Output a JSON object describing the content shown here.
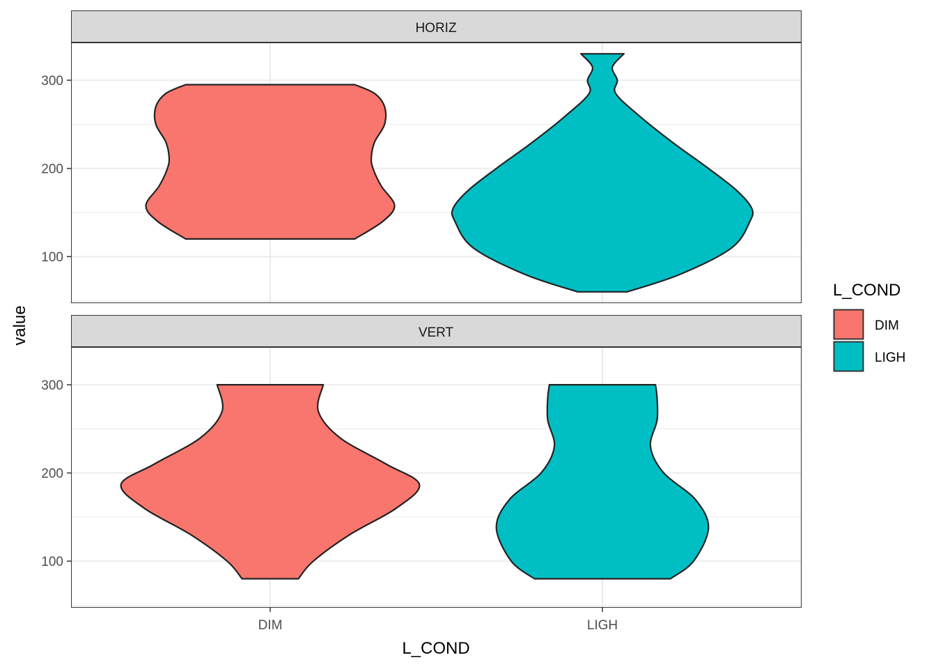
{
  "chart_data": {
    "type": "violin",
    "xlabel": "L_COND",
    "ylabel": "value",
    "categories": [
      "DIM",
      "LIGH"
    ],
    "ylim": [
      48,
      342
    ],
    "y_ticks": [
      100,
      200,
      300
    ],
    "legend": {
      "title": "L_COND",
      "position": "right",
      "entries": [
        {
          "label": "DIM",
          "color": "#F8766D"
        },
        {
          "label": "LIGH",
          "color": "#00BFC4"
        }
      ]
    },
    "grid": true,
    "panels": [
      {
        "label": "HORIZ",
        "violins": [
          {
            "category": "DIM",
            "color": "#F8766D",
            "min": 120,
            "max": 295,
            "profile": [
              [
                120,
                0.51
              ],
              [
                140,
                0.68
              ],
              [
                158,
                0.75
              ],
              [
                180,
                0.67
              ],
              [
                200,
                0.62
              ],
              [
                213,
                0.61
              ],
              [
                230,
                0.63
              ],
              [
                250,
                0.69
              ],
              [
                270,
                0.69
              ],
              [
                285,
                0.63
              ],
              [
                295,
                0.51
              ]
            ]
          },
          {
            "category": "LIGH",
            "color": "#00BFC4",
            "min": 60,
            "max": 330,
            "profile": [
              [
                60,
                0.15
              ],
              [
                80,
                0.47
              ],
              [
                110,
                0.78
              ],
              [
                140,
                0.89
              ],
              [
                155,
                0.9
              ],
              [
                175,
                0.81
              ],
              [
                200,
                0.64
              ],
              [
                230,
                0.42
              ],
              [
                260,
                0.22
              ],
              [
                285,
                0.08
              ],
              [
                300,
                0.09
              ],
              [
                315,
                0.06
              ],
              [
                330,
                0.13
              ]
            ]
          }
        ]
      },
      {
        "label": "VERT",
        "violins": [
          {
            "category": "DIM",
            "color": "#F8766D",
            "min": 80,
            "max": 300,
            "profile": [
              [
                80,
                0.17
              ],
              [
                100,
                0.26
              ],
              [
                130,
                0.48
              ],
              [
                160,
                0.76
              ],
              [
                187,
                0.9
              ],
              [
                210,
                0.7
              ],
              [
                240,
                0.42
              ],
              [
                270,
                0.29
              ],
              [
                300,
                0.32
              ]
            ]
          },
          {
            "category": "LIGH",
            "color": "#00BFC4",
            "min": 80,
            "max": 300,
            "profile": [
              [
                80,
                0.41
              ],
              [
                100,
                0.55
              ],
              [
                138,
                0.64
              ],
              [
                170,
                0.56
              ],
              [
                200,
                0.37
              ],
              [
                230,
                0.29
              ],
              [
                260,
                0.33
              ],
              [
                285,
                0.33
              ],
              [
                300,
                0.32
              ]
            ]
          }
        ]
      }
    ]
  }
}
